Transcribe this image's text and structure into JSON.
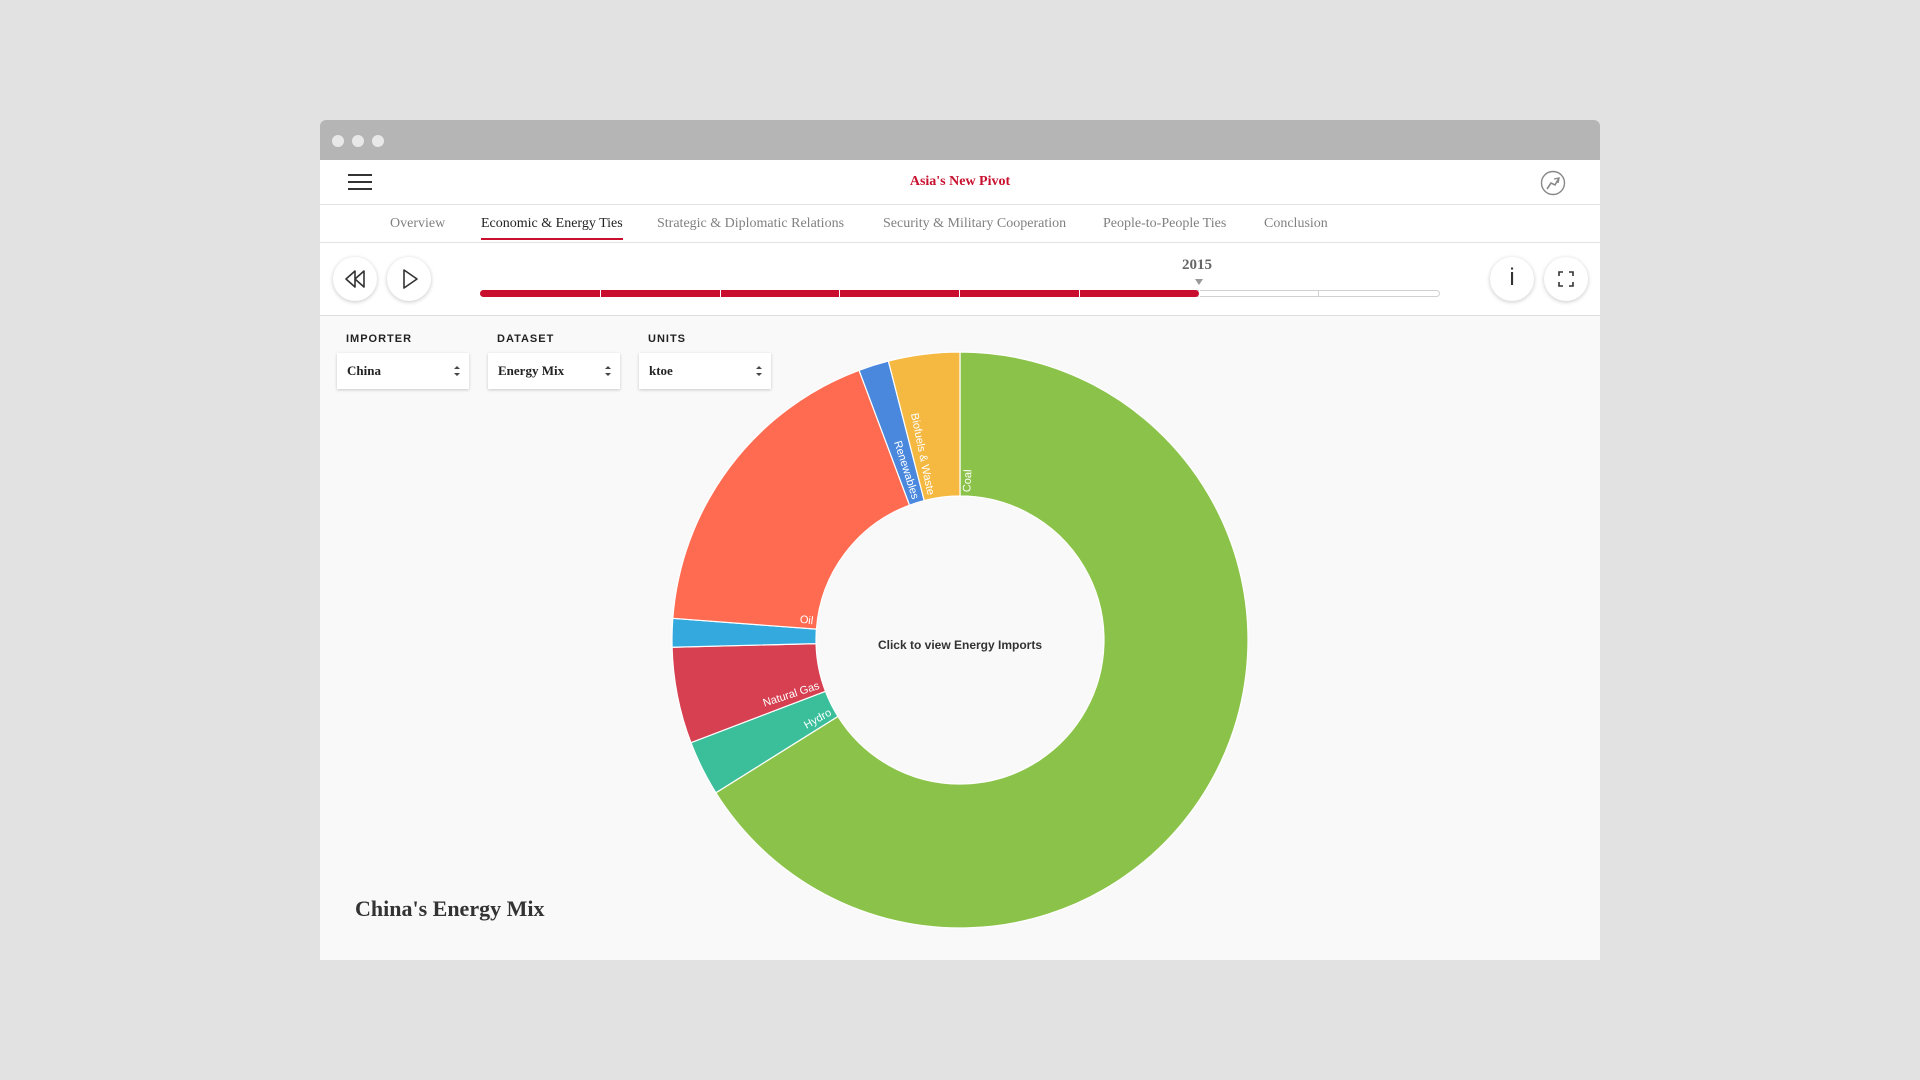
{
  "header": {
    "title": "Asia's New Pivot"
  },
  "tabs": [
    {
      "label": "Overview"
    },
    {
      "label": "Economic & Energy Ties"
    },
    {
      "label": "Strategic & Diplomatic Relations"
    },
    {
      "label": "Security & Military Cooperation"
    },
    {
      "label": "People-to-People Ties"
    },
    {
      "label": "Conclusion"
    }
  ],
  "active_tab": "Economic & Energy Ties",
  "timeline": {
    "year": "2015",
    "segments": 8,
    "progress": 0.75
  },
  "filters": {
    "importer": {
      "label": "IMPORTER",
      "value": "China"
    },
    "dataset": {
      "label": "DATASET",
      "value": "Energy Mix"
    },
    "units": {
      "label": "UNITS",
      "value": "ktoe"
    }
  },
  "chart_data": {
    "type": "pie",
    "donut": true,
    "title": "China's Energy Mix",
    "center_label": "Click to view Energy Imports",
    "slices": [
      {
        "label": "Coal",
        "value": 66.1,
        "color": "#8bc34a"
      },
      {
        "label": "Hydro",
        "value": 3.1,
        "color": "#3bbf9b"
      },
      {
        "label": "Natural Gas",
        "value": 5.4,
        "color": "#d64051"
      },
      {
        "label": "",
        "value": 1.6,
        "color": "#33a9dd"
      },
      {
        "label": "Oil",
        "value": 18.1,
        "color": "#ff6b50"
      },
      {
        "label": "Renewables",
        "value": 1.7,
        "color": "#4a88de"
      },
      {
        "label": "Biofuels & Waste",
        "value": 4.0,
        "color": "#f5b942"
      }
    ]
  },
  "colors": {
    "accent": "#c8102e"
  },
  "icons": {
    "menu": "hamburger-icon",
    "rewind": "rewind-icon",
    "play": "play-icon",
    "info": "info-icon",
    "fullscreen": "fullscreen-icon"
  }
}
